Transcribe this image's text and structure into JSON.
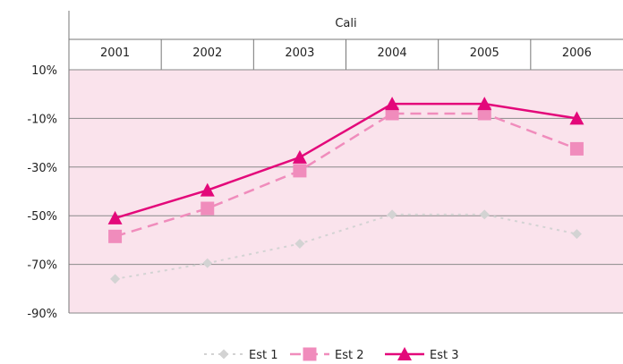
{
  "chart_data": {
    "type": "line",
    "group_label": "Cali",
    "categories": [
      "2001",
      "2002",
      "2003",
      "2004",
      "2005",
      "2006"
    ],
    "y_ticks": [
      "10%",
      "-10%",
      "-30%",
      "-50%",
      "-70%",
      "-90%"
    ],
    "ylim": [
      -90,
      10
    ],
    "grid": true,
    "legend_position": "bottom",
    "plot_background": "#fae3ec",
    "series": [
      {
        "name": "Est 1",
        "values": [
          -76,
          -69.5,
          -61.5,
          -49.5,
          -49.5,
          -57.5
        ],
        "color": "#d3d3d3",
        "marker": "diamond",
        "dash": "dotted"
      },
      {
        "name": "Est 2",
        "values": [
          -58.5,
          -47,
          -31.5,
          -8,
          -8,
          -22.5
        ],
        "color": "#f08cbc",
        "marker": "square",
        "dash": "dashed"
      },
      {
        "name": "Est 3",
        "values": [
          -51,
          -39.5,
          -26,
          -4,
          -4,
          -10
        ],
        "color": "#e3087a",
        "marker": "triangle",
        "dash": "solid"
      }
    ]
  }
}
